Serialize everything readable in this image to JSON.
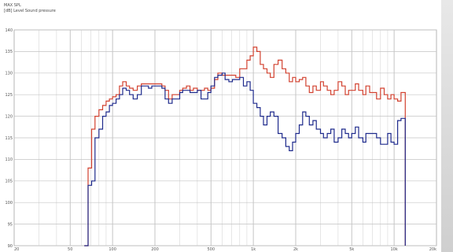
{
  "header": {
    "line1": "MAX SPL",
    "line2": "[dB]  Level  Sound pressure"
  },
  "chart_data": {
    "type": "line",
    "title": "MAX SPL",
    "ylabel": "[dB]  Level  Sound pressure",
    "xlabel": "",
    "x_scale": "log",
    "xlim": [
      20,
      20000
    ],
    "ylim": [
      90,
      140
    ],
    "yticks": [
      90,
      95,
      100,
      105,
      110,
      115,
      120,
      125,
      130,
      135,
      140
    ],
    "xticks": [
      {
        "v": 20,
        "label": "20"
      },
      {
        "v": 50,
        "label": "50"
      },
      {
        "v": 100,
        "label": "100"
      },
      {
        "v": 200,
        "label": "200"
      },
      {
        "v": 500,
        "label": "500"
      },
      {
        "v": 1000,
        "label": "1k"
      },
      {
        "v": 2000,
        "label": "2k"
      },
      {
        "v": 5000,
        "label": "5k"
      },
      {
        "v": 10000,
        "label": "10k"
      },
      {
        "v": 20000,
        "label": "20k"
      }
    ],
    "grid": true,
    "series": [
      {
        "color": "#d2412f",
        "x": [
          63,
          67,
          71,
          75,
          80,
          85,
          90,
          95,
          100,
          106,
          112,
          118,
          125,
          132,
          140,
          150,
          160,
          170,
          180,
          190,
          200,
          212,
          224,
          236,
          250,
          265,
          280,
          300,
          315,
          335,
          355,
          375,
          400,
          425,
          450,
          475,
          500,
          530,
          560,
          600,
          630,
          670,
          710,
          750,
          800,
          850,
          900,
          950,
          1000,
          1060,
          1120,
          1180,
          1250,
          1320,
          1400,
          1500,
          1600,
          1700,
          1800,
          1900,
          2000,
          2120,
          2240,
          2360,
          2500,
          2650,
          2800,
          3000,
          3150,
          3350,
          3550,
          3750,
          4000,
          4250,
          4500,
          4750,
          5000,
          5300,
          5600,
          6000,
          6300,
          6700,
          7100,
          7500,
          8000,
          8500,
          9000,
          9500,
          10000,
          10600,
          11200,
          11800,
          12000
        ],
        "y": [
          90,
          108,
          117,
          120,
          121.5,
          122.5,
          123.5,
          124,
          124.5,
          125,
          127,
          128,
          127,
          126.5,
          126,
          127,
          127.5,
          127.5,
          127.5,
          127.5,
          127.5,
          127.5,
          127,
          126,
          124,
          125,
          125,
          126,
          126.5,
          127,
          126,
          126.5,
          126,
          126,
          126.5,
          126,
          126.5,
          128.5,
          130,
          129.5,
          129.5,
          129.5,
          129.5,
          129,
          131,
          131,
          133,
          134,
          136,
          135,
          132,
          131,
          130,
          129,
          132,
          133,
          131,
          130,
          128,
          129,
          128,
          128.5,
          129,
          127,
          125.5,
          127,
          126,
          128,
          127,
          126,
          125,
          126,
          128,
          127,
          125,
          126,
          126,
          127.5,
          126,
          125,
          127,
          125.5,
          125.5,
          124,
          126.5,
          125,
          124,
          125,
          124,
          123.5,
          125.5,
          125.5,
          90
        ]
      },
      {
        "color": "#1e2a8c",
        "x": [
          63,
          67,
          71,
          75,
          80,
          85,
          90,
          95,
          100,
          106,
          112,
          118,
          125,
          132,
          140,
          150,
          160,
          170,
          180,
          190,
          200,
          212,
          224,
          236,
          250,
          265,
          280,
          300,
          315,
          335,
          355,
          375,
          400,
          425,
          450,
          475,
          500,
          530,
          560,
          600,
          630,
          670,
          710,
          750,
          800,
          850,
          900,
          950,
          1000,
          1060,
          1120,
          1180,
          1250,
          1320,
          1400,
          1500,
          1600,
          1700,
          1800,
          1900,
          2000,
          2120,
          2240,
          2360,
          2500,
          2650,
          2800,
          3000,
          3150,
          3350,
          3550,
          3750,
          4000,
          4250,
          4500,
          4750,
          5000,
          5300,
          5600,
          6000,
          6300,
          6700,
          7100,
          7500,
          8000,
          8500,
          9000,
          9500,
          10000,
          10600,
          11200,
          11800,
          12000
        ],
        "y": [
          90,
          104,
          105,
          115,
          117,
          120,
          121,
          122.5,
          123,
          124,
          125,
          126.5,
          126,
          125,
          124,
          125,
          127,
          127,
          126.5,
          127,
          127,
          127,
          126.5,
          124,
          123,
          124,
          124,
          125.5,
          126,
          126,
          125.5,
          125.5,
          126,
          124,
          124,
          125.5,
          127,
          129,
          129.5,
          130,
          128.5,
          128,
          128.5,
          128.5,
          129,
          127,
          128,
          126,
          123,
          122,
          120,
          118,
          120,
          121,
          120,
          116,
          115,
          113,
          112,
          114,
          116,
          118,
          121,
          120,
          118,
          119,
          117,
          116,
          115,
          116,
          117,
          114,
          115,
          117,
          116,
          115,
          116,
          117.5,
          115,
          114,
          116,
          116,
          116,
          115,
          113.5,
          113.5,
          116,
          114,
          113.5,
          119,
          119.5,
          119.5,
          90
        ]
      }
    ]
  }
}
